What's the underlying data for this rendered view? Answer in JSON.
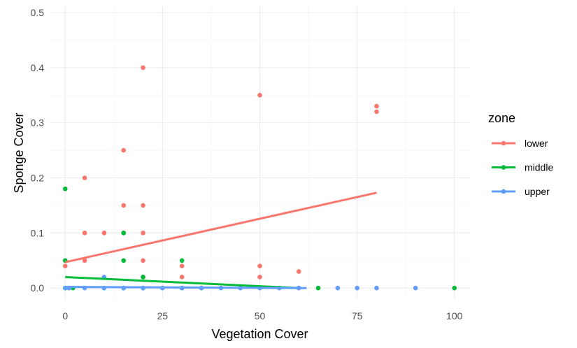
{
  "chart_data": {
    "type": "scatter",
    "title": "",
    "xlabel": "Vegetation Cover",
    "ylabel": "Sponge Cover",
    "xlim": [
      -4,
      104
    ],
    "ylim": [
      -0.02,
      0.51
    ],
    "x_ticks": [
      0,
      25,
      50,
      75,
      100
    ],
    "x_tick_labels": [
      "0",
      "25",
      "50",
      "75",
      "100"
    ],
    "y_ticks": [
      0.0,
      0.1,
      0.2,
      0.3,
      0.4,
      0.5
    ],
    "y_tick_labels": [
      "0.0",
      "0.1",
      "0.2",
      "0.3",
      "0.4",
      "0.5"
    ],
    "grid": true,
    "legend": {
      "title": "zone",
      "placement": "right"
    },
    "series": [
      {
        "name": "lower",
        "color": "#F8766D",
        "points": [
          {
            "x": 0,
            "y": 0.04
          },
          {
            "x": 0,
            "y": 0.05
          },
          {
            "x": 5,
            "y": 0.2
          },
          {
            "x": 5,
            "y": 0.1
          },
          {
            "x": 5,
            "y": 0.05
          },
          {
            "x": 10,
            "y": 0.1
          },
          {
            "x": 15,
            "y": 0.25
          },
          {
            "x": 15,
            "y": 0.15
          },
          {
            "x": 15,
            "y": 0.1
          },
          {
            "x": 20,
            "y": 0.4
          },
          {
            "x": 20,
            "y": 0.15
          },
          {
            "x": 20,
            "y": 0.1
          },
          {
            "x": 20,
            "y": 0.05
          },
          {
            "x": 20,
            "y": 0.02
          },
          {
            "x": 30,
            "y": 0.04
          },
          {
            "x": 30,
            "y": 0.02
          },
          {
            "x": 50,
            "y": 0.35
          },
          {
            "x": 50,
            "y": 0.04
          },
          {
            "x": 50,
            "y": 0.02
          },
          {
            "x": 60,
            "y": 0.03
          },
          {
            "x": 60,
            "y": 0.0
          },
          {
            "x": 80,
            "y": 0.33
          },
          {
            "x": 80,
            "y": 0.32
          }
        ],
        "trend": {
          "x": [
            0,
            80
          ],
          "y": [
            0.047,
            0.173
          ]
        }
      },
      {
        "name": "middle",
        "color": "#00BA38",
        "points": [
          {
            "x": 0,
            "y": 0.18
          },
          {
            "x": 0,
            "y": 0.05
          },
          {
            "x": 0,
            "y": 0.0
          },
          {
            "x": 1,
            "y": 0.0
          },
          {
            "x": 2,
            "y": 0.0
          },
          {
            "x": 10,
            "y": 0.0
          },
          {
            "x": 15,
            "y": 0.1
          },
          {
            "x": 15,
            "y": 0.05
          },
          {
            "x": 15,
            "y": 0.0
          },
          {
            "x": 20,
            "y": 0.02
          },
          {
            "x": 20,
            "y": 0.0
          },
          {
            "x": 30,
            "y": 0.05
          },
          {
            "x": 30,
            "y": 0.0
          },
          {
            "x": 35,
            "y": 0.0
          },
          {
            "x": 65,
            "y": 0.0
          },
          {
            "x": 100,
            "y": 0.0
          }
        ],
        "trend": {
          "x": [
            0,
            60
          ],
          "y": [
            0.02,
            0.0
          ]
        }
      },
      {
        "name": "upper",
        "color": "#619CFF",
        "points": [
          {
            "x": 0,
            "y": 0.0
          },
          {
            "x": 1,
            "y": 0.0
          },
          {
            "x": 5,
            "y": 0.0
          },
          {
            "x": 10,
            "y": 0.02
          },
          {
            "x": 10,
            "y": 0.0
          },
          {
            "x": 15,
            "y": 0.0
          },
          {
            "x": 20,
            "y": 0.0
          },
          {
            "x": 25,
            "y": 0.0
          },
          {
            "x": 30,
            "y": 0.0
          },
          {
            "x": 35,
            "y": 0.0
          },
          {
            "x": 40,
            "y": 0.0
          },
          {
            "x": 45,
            "y": 0.0
          },
          {
            "x": 50,
            "y": 0.0
          },
          {
            "x": 55,
            "y": 0.0
          },
          {
            "x": 60,
            "y": 0.0
          },
          {
            "x": 70,
            "y": 0.0
          },
          {
            "x": 75,
            "y": 0.0
          },
          {
            "x": 80,
            "y": 0.0
          },
          {
            "x": 90,
            "y": 0.0
          }
        ],
        "trend": {
          "x": [
            0,
            62
          ],
          "y": [
            0.002,
            0.0
          ]
        }
      }
    ]
  }
}
